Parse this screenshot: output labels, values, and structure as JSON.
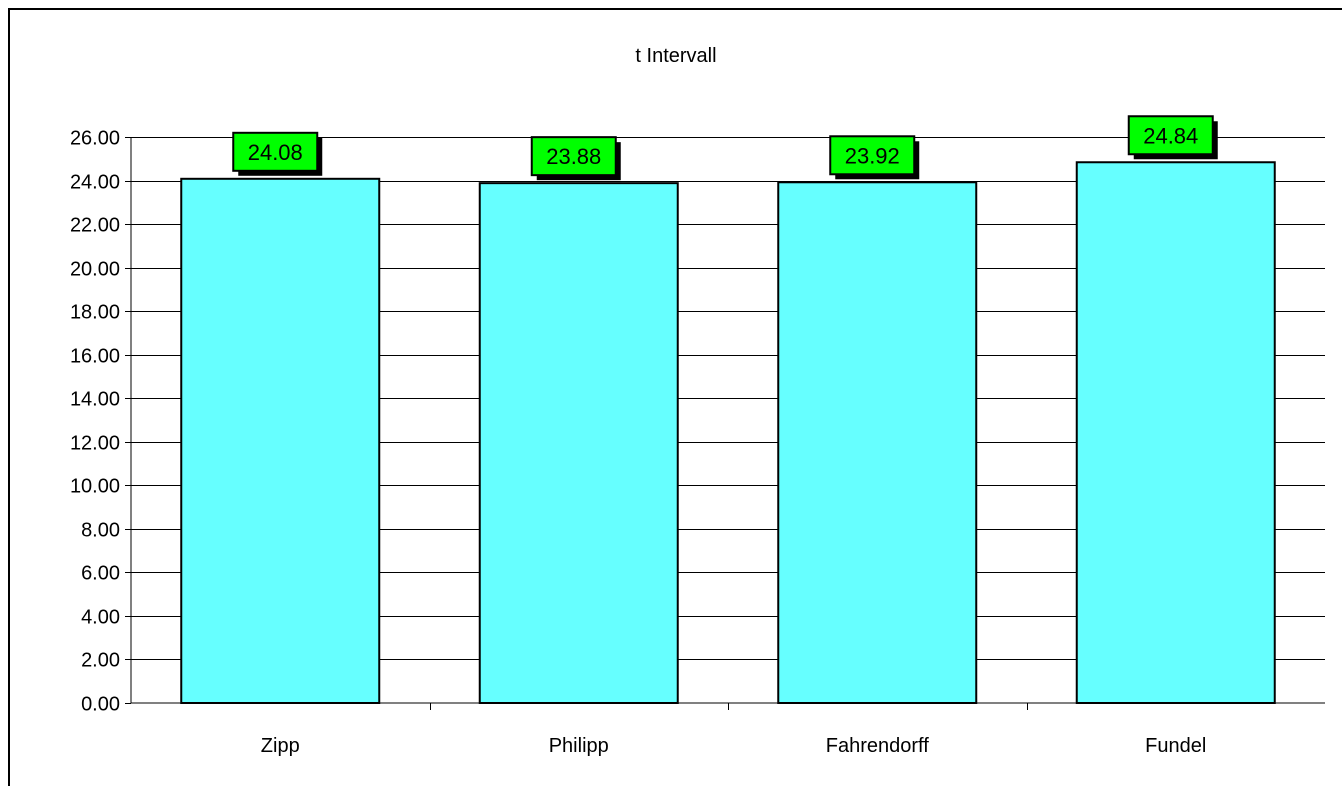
{
  "chart_data": {
    "type": "bar",
    "title": "t Intervall",
    "xlabel": "",
    "ylabel": "",
    "categories": [
      "Zipp",
      "Philipp",
      "Fahrendorff",
      "Fundel"
    ],
    "values": [
      24.08,
      23.88,
      23.92,
      24.84
    ],
    "data_labels": [
      "24.08",
      "23.88",
      "23.92",
      "24.84"
    ],
    "ylim": [
      0,
      26
    ],
    "ytick_step": 2,
    "ytick_labels": [
      "0.00",
      "2.00",
      "4.00",
      "6.00",
      "8.00",
      "10.00",
      "12.00",
      "14.00",
      "16.00",
      "18.00",
      "20.00",
      "22.00",
      "24.00",
      "26.00"
    ],
    "grid": "horizontal",
    "legend": "none",
    "colors": {
      "bar_fill": "#66FFFF",
      "bar_stroke": "#000000",
      "label_fill": "#00FF00",
      "label_shadow": "#000000",
      "gridline": "#000000",
      "background": "#FFFFFF"
    }
  }
}
